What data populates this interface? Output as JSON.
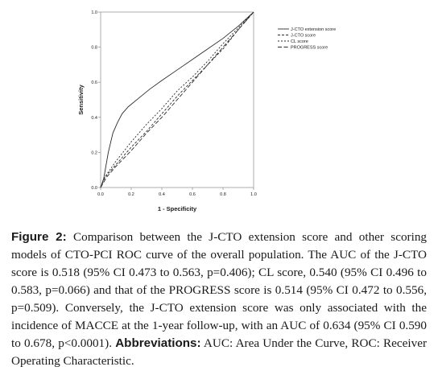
{
  "chart_data": {
    "type": "line",
    "xlabel": "1 - Specificity",
    "ylabel": "Sensitivity",
    "xlim": [
      0,
      1
    ],
    "ylim": [
      0,
      1
    ],
    "x_ticks": [
      "0.0",
      "0.2",
      "0.4",
      "0.6",
      "0.8",
      "1.0"
    ],
    "y_ticks": [
      "0.0",
      "0.2",
      "0.4",
      "0.6",
      "0.8",
      "1.0"
    ],
    "grid": false,
    "legend_position": "top-right",
    "series": [
      {
        "name": "J-CTO extension score",
        "line_style": "solid",
        "points": [
          [
            0,
            0
          ],
          [
            0.02,
            0.05
          ],
          [
            0.05,
            0.2
          ],
          [
            0.08,
            0.31
          ],
          [
            0.11,
            0.37
          ],
          [
            0.14,
            0.42
          ],
          [
            0.18,
            0.46
          ],
          [
            0.25,
            0.51
          ],
          [
            0.32,
            0.56
          ],
          [
            0.4,
            0.61
          ],
          [
            0.5,
            0.67
          ],
          [
            0.6,
            0.73
          ],
          [
            0.7,
            0.79
          ],
          [
            0.8,
            0.85
          ],
          [
            0.9,
            0.92
          ],
          [
            1,
            1
          ]
        ]
      },
      {
        "name": "J-CTO score",
        "line_style": "dash",
        "points": [
          [
            0,
            0
          ],
          [
            0.03,
            0.06
          ],
          [
            0.1,
            0.13
          ],
          [
            0.2,
            0.23
          ],
          [
            0.3,
            0.32
          ],
          [
            0.4,
            0.42
          ],
          [
            0.5,
            0.52
          ],
          [
            0.6,
            0.61
          ],
          [
            0.7,
            0.7
          ],
          [
            0.8,
            0.79
          ],
          [
            0.9,
            0.9
          ],
          [
            1,
            1
          ]
        ]
      },
      {
        "name": "CL score",
        "line_style": "shortdash",
        "points": [
          [
            0,
            0
          ],
          [
            0.02,
            0.05
          ],
          [
            0.1,
            0.15
          ],
          [
            0.2,
            0.26
          ],
          [
            0.3,
            0.36
          ],
          [
            0.4,
            0.45
          ],
          [
            0.5,
            0.55
          ],
          [
            0.6,
            0.63
          ],
          [
            0.7,
            0.72
          ],
          [
            0.8,
            0.82
          ],
          [
            0.9,
            0.91
          ],
          [
            1,
            1
          ]
        ]
      },
      {
        "name": "PROGRESS score",
        "line_style": "longdash",
        "points": [
          [
            0,
            0
          ],
          [
            0.04,
            0.06
          ],
          [
            0.1,
            0.12
          ],
          [
            0.2,
            0.21
          ],
          [
            0.3,
            0.31
          ],
          [
            0.4,
            0.4
          ],
          [
            0.5,
            0.5
          ],
          [
            0.6,
            0.6
          ],
          [
            0.7,
            0.7
          ],
          [
            0.8,
            0.8
          ],
          [
            0.9,
            0.9
          ],
          [
            1,
            1
          ]
        ]
      }
    ]
  },
  "caption": {
    "figure_label": "Figure 2:",
    "text": " Comparison between the J-CTO extension score and other scoring models of CTO-PCI ROC curve of the overall population. The AUC of the J-CTO score is 0.518 (95% CI 0.473 to 0.563, p=0.406); CL score, 0.540 (95% CI 0.496 to 0.583, p=0.066) and that of the PROGRESS score is 0.514 (95% CI 0.472 to 0.556, p=0.509). Conversely, the J-CTO extension score was only associated with the incidence of MACCE at the 1-year follow-up, with an AUC of 0.634 (95% CI 0.590 to 0.678, p<0.0001). ",
    "abbr_label": "Abbreviations:",
    "abbr_text": " AUC: Area Under the Curve, ROC: Receiver Operating Characteristic."
  },
  "colors": {
    "line": "#2b2b2b",
    "frame": "#9a9a9a",
    "text": "#1a1a1a"
  }
}
